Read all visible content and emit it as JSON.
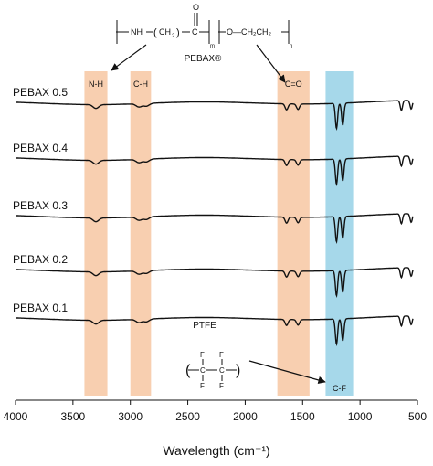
{
  "chart_data": {
    "type": "line",
    "xlabel": "Wavelength (cm⁻¹)",
    "x_reversed": true,
    "xlim": [
      4000,
      500
    ],
    "x_ticks": [
      4000,
      3500,
      3000,
      2500,
      2000,
      1500,
      1000,
      500
    ],
    "series": [
      {
        "name": "PEBAX 0.5"
      },
      {
        "name": "PEBAX 0.4"
      },
      {
        "name": "PEBAX 0.3"
      },
      {
        "name": "PEBAX 0.2"
      },
      {
        "name": "PEBAX 0.1"
      }
    ],
    "peaks": [
      {
        "x": 3300,
        "depth": 0.35
      },
      {
        "x": 2925,
        "depth": 0.3
      },
      {
        "x": 2860,
        "depth": 0.25
      },
      {
        "x": 1640,
        "depth": 0.55
      },
      {
        "x": 1540,
        "depth": 0.5
      },
      {
        "x": 1205,
        "depth": 2.3
      },
      {
        "x": 1150,
        "depth": 2.0
      },
      {
        "x": 640,
        "depth": 0.9
      },
      {
        "x": 555,
        "depth": 0.8
      }
    ],
    "bands": [
      {
        "label": "N-H",
        "from": 3400,
        "to": 3200,
        "color": "#f8cfb0"
      },
      {
        "label": "C-H",
        "from": 3000,
        "to": 2820,
        "color": "#f8cfb0"
      },
      {
        "label": "C=O",
        "from": 1720,
        "to": 1440,
        "color": "#f8cfb0"
      },
      {
        "label": "C-F",
        "from": 1300,
        "to": 1060,
        "color": "#a6d8ea"
      }
    ],
    "annotations": {
      "pebax_label": "PEBAX®",
      "ptfe_label": "PTFE",
      "pebax_formula": {
        "nh": "NH",
        "ch2": "CH",
        "c": "C",
        "o": "O",
        "o2": "O",
        "m": "m",
        "n": "n",
        "sub2": "2",
        "ethylene": "O—CH₂CH₂"
      },
      "ptfe_formula": {
        "f": "F",
        "c": "C"
      }
    }
  }
}
